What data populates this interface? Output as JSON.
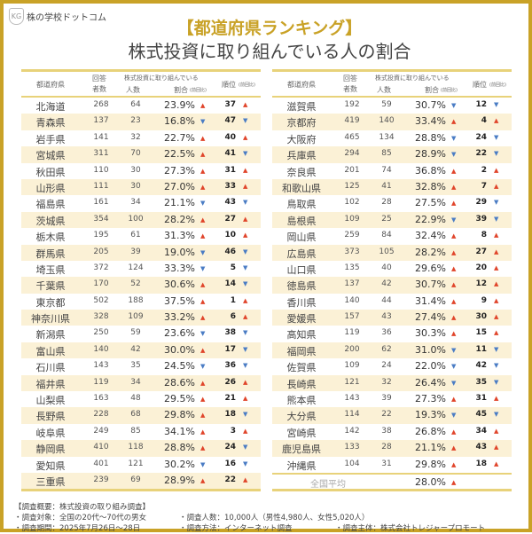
{
  "logo": {
    "text": "株の学校ドットコム",
    "mark": "KG"
  },
  "title": "【都道府県ランキング】",
  "subtitle": "株式投資に取り組んでいる人の割合",
  "header": {
    "pref": "都道府県",
    "answers_1": "回答",
    "answers_2": "者数",
    "group": "株式投資に取り組んでいる",
    "people": "人数",
    "ratio": "割合",
    "ratio_note": "(前回比)",
    "rank": "順位",
    "rank_note": "(前回比)"
  },
  "colors": {
    "up": "#e0452b",
    "down": "#4a7cc4",
    "accent": "#c9a227",
    "alt_row": "#fbf1d6"
  },
  "left_rows": [
    [
      "北海道",
      268,
      64,
      "23.9%",
      "up",
      37,
      "up"
    ],
    [
      "青森県",
      137,
      23,
      "16.8%",
      "down",
      47,
      "down"
    ],
    [
      "岩手県",
      141,
      32,
      "22.7%",
      "up",
      40,
      "up"
    ],
    [
      "宮城県",
      311,
      70,
      "22.5%",
      "up",
      41,
      "down"
    ],
    [
      "秋田県",
      110,
      30,
      "27.3%",
      "up",
      31,
      "up"
    ],
    [
      "山形県",
      111,
      30,
      "27.0%",
      "up",
      33,
      "up"
    ],
    [
      "福島県",
      161,
      34,
      "21.1%",
      "down",
      43,
      "down"
    ],
    [
      "茨城県",
      354,
      100,
      "28.2%",
      "up",
      27,
      "up"
    ],
    [
      "栃木県",
      195,
      61,
      "31.3%",
      "up",
      10,
      "up"
    ],
    [
      "群馬県",
      205,
      39,
      "19.0%",
      "down",
      46,
      "down"
    ],
    [
      "埼玉県",
      372,
      124,
      "33.3%",
      "down",
      5,
      "down"
    ],
    [
      "千葉県",
      170,
      52,
      "30.6%",
      "up",
      14,
      "down"
    ],
    [
      "東京都",
      502,
      188,
      "37.5%",
      "up",
      1,
      "up"
    ],
    [
      "神奈川県",
      328,
      109,
      "33.2%",
      "up",
      6,
      "up"
    ],
    [
      "新潟県",
      250,
      59,
      "23.6%",
      "down",
      38,
      "down"
    ],
    [
      "富山県",
      140,
      42,
      "30.0%",
      "up",
      17,
      "down"
    ],
    [
      "石川県",
      143,
      35,
      "24.5%",
      "down",
      36,
      "down"
    ],
    [
      "福井県",
      119,
      34,
      "28.6%",
      "up",
      26,
      "up"
    ],
    [
      "山梨県",
      163,
      48,
      "29.5%",
      "up",
      21,
      "up"
    ],
    [
      "長野県",
      228,
      68,
      "29.8%",
      "up",
      18,
      "down"
    ],
    [
      "岐阜県",
      249,
      85,
      "34.1%",
      "up",
      3,
      "up"
    ],
    [
      "静岡県",
      410,
      118,
      "28.8%",
      "up",
      24,
      "down"
    ],
    [
      "愛知県",
      401,
      121,
      "30.2%",
      "down",
      16,
      "down"
    ],
    [
      "三重県",
      239,
      69,
      "28.9%",
      "up",
      22,
      "up"
    ]
  ],
  "right_rows": [
    [
      "滋賀県",
      192,
      59,
      "30.7%",
      "down",
      12,
      "down"
    ],
    [
      "京都府",
      419,
      140,
      "33.4%",
      "up",
      4,
      "up"
    ],
    [
      "大阪府",
      465,
      134,
      "28.8%",
      "down",
      24,
      "down"
    ],
    [
      "兵庫県",
      294,
      85,
      "28.9%",
      "down",
      22,
      "down"
    ],
    [
      "奈良県",
      201,
      74,
      "36.8%",
      "up",
      2,
      "up"
    ],
    [
      "和歌山県",
      125,
      41,
      "32.8%",
      "up",
      7,
      "up"
    ],
    [
      "鳥取県",
      102,
      28,
      "27.5%",
      "up",
      29,
      "down"
    ],
    [
      "島根県",
      109,
      25,
      "22.9%",
      "down",
      39,
      "down"
    ],
    [
      "岡山県",
      259,
      84,
      "32.4%",
      "up",
      8,
      "up"
    ],
    [
      "広島県",
      373,
      105,
      "28.2%",
      "up",
      27,
      "up"
    ],
    [
      "山口県",
      135,
      40,
      "29.6%",
      "up",
      20,
      "up"
    ],
    [
      "徳島県",
      137,
      42,
      "30.7%",
      "up",
      12,
      "up"
    ],
    [
      "香川県",
      140,
      44,
      "31.4%",
      "up",
      9,
      "up"
    ],
    [
      "愛媛県",
      157,
      43,
      "27.4%",
      "up",
      30,
      "up"
    ],
    [
      "高知県",
      119,
      36,
      "30.3%",
      "up",
      15,
      "up"
    ],
    [
      "福岡県",
      200,
      62,
      "31.0%",
      "down",
      11,
      "down"
    ],
    [
      "佐賀県",
      109,
      24,
      "22.0%",
      "down",
      42,
      "down"
    ],
    [
      "長崎県",
      121,
      32,
      "26.4%",
      "down",
      35,
      "down"
    ],
    [
      "熊本県",
      143,
      39,
      "27.3%",
      "up",
      31,
      "up"
    ],
    [
      "大分県",
      114,
      22,
      "19.3%",
      "down",
      45,
      "down"
    ],
    [
      "宮崎県",
      142,
      38,
      "26.8%",
      "up",
      34,
      "up"
    ],
    [
      "鹿児島県",
      133,
      28,
      "21.1%",
      "up",
      43,
      "up"
    ],
    [
      "沖縄県",
      104,
      31,
      "29.8%",
      "up",
      18,
      "up"
    ]
  ],
  "national": {
    "label": "全国平均",
    "ratio": "28.0%",
    "dir": "up"
  },
  "footer": {
    "heading": "【調査概要：株式投資の取り組み調査】",
    "target": "・調査対象：全国の20代〜70代の男女",
    "count": "・調査人数：10,000人（男性4,980人、女性5,020人）",
    "period": "・調査期間：2025年7月26日〜28日",
    "method": "・調査方法：インターネット調査",
    "org": "・調査主体：株式会社トレジャープロモート"
  }
}
